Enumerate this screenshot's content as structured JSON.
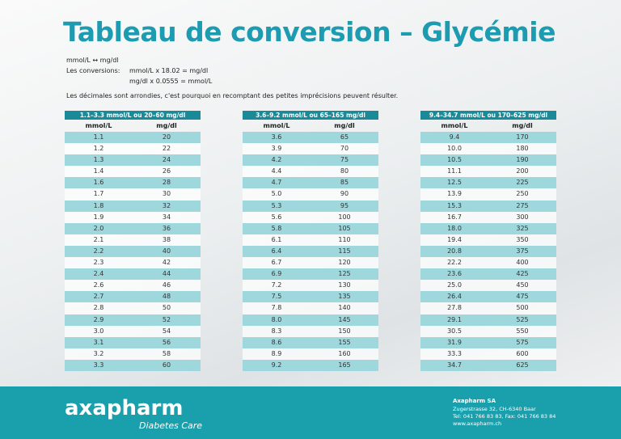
{
  "header": {
    "title": "Tableau de conversion – Glycémie",
    "units": "mmol/L ↔ mg/dl",
    "conversions_label": "Les conversions:",
    "conversion_1": "mmol/L x 18.02 = mg/dl",
    "conversion_2": "mg/dl x 0.0555 = mmol/L",
    "note": "Les décimales sont arrondies, c'est pourquoi en recomptant des petites imprécisions peuvent résulter."
  },
  "tables": [
    {
      "title": "1.1–3.3 mmol/L ou 20–60 mg/dl",
      "columns": [
        "mmol/L",
        "mg/dl"
      ],
      "rows": [
        [
          "1.1",
          "20"
        ],
        [
          "1.2",
          "22"
        ],
        [
          "1.3",
          "24"
        ],
        [
          "1.4",
          "26"
        ],
        [
          "1.6",
          "28"
        ],
        [
          "1.7",
          "30"
        ],
        [
          "1.8",
          "32"
        ],
        [
          "1.9",
          "34"
        ],
        [
          "2.0",
          "36"
        ],
        [
          "2.1",
          "38"
        ],
        [
          "2.2",
          "40"
        ],
        [
          "2.3",
          "42"
        ],
        [
          "2.4",
          "44"
        ],
        [
          "2.6",
          "46"
        ],
        [
          "2.7",
          "48"
        ],
        [
          "2.8",
          "50"
        ],
        [
          "2.9",
          "52"
        ],
        [
          "3.0",
          "54"
        ],
        [
          "3.1",
          "56"
        ],
        [
          "3.2",
          "58"
        ],
        [
          "3.3",
          "60"
        ]
      ]
    },
    {
      "title": "3.6–9.2 mmol/L ou 65–165 mg/dl",
      "columns": [
        "mmol/L",
        "mg/dl"
      ],
      "rows": [
        [
          "3.6",
          "65"
        ],
        [
          "3.9",
          "70"
        ],
        [
          "4.2",
          "75"
        ],
        [
          "4.4",
          "80"
        ],
        [
          "4.7",
          "85"
        ],
        [
          "5.0",
          "90"
        ],
        [
          "5.3",
          "95"
        ],
        [
          "5.6",
          "100"
        ],
        [
          "5.8",
          "105"
        ],
        [
          "6.1",
          "110"
        ],
        [
          "6.4",
          "115"
        ],
        [
          "6.7",
          "120"
        ],
        [
          "6.9",
          "125"
        ],
        [
          "7.2",
          "130"
        ],
        [
          "7.5",
          "135"
        ],
        [
          "7.8",
          "140"
        ],
        [
          "8.0",
          "145"
        ],
        [
          "8.3",
          "150"
        ],
        [
          "8.6",
          "155"
        ],
        [
          "8.9",
          "160"
        ],
        [
          "9.2",
          "165"
        ]
      ]
    },
    {
      "title": "9.4–34.7 mmol/L ou 170–625 mg/dl",
      "columns": [
        "mmol/L",
        "mg/dl"
      ],
      "rows": [
        [
          "9.4",
          "170"
        ],
        [
          "10.0",
          "180"
        ],
        [
          "10.5",
          "190"
        ],
        [
          "11.1",
          "200"
        ],
        [
          "12.5",
          "225"
        ],
        [
          "13.9",
          "250"
        ],
        [
          "15.3",
          "275"
        ],
        [
          "16.7",
          "300"
        ],
        [
          "18.0",
          "325"
        ],
        [
          "19.4",
          "350"
        ],
        [
          "20.8",
          "375"
        ],
        [
          "22.2",
          "400"
        ],
        [
          "23.6",
          "425"
        ],
        [
          "25.0",
          "450"
        ],
        [
          "26.4",
          "475"
        ],
        [
          "27.8",
          "500"
        ],
        [
          "29.1",
          "525"
        ],
        [
          "30.5",
          "550"
        ],
        [
          "31.9",
          "575"
        ],
        [
          "33.3",
          "600"
        ],
        [
          "34.7",
          "625"
        ]
      ]
    }
  ],
  "footer": {
    "logo": "axapharm",
    "tagline": "Diabetes Care",
    "company": "Axapharm SA",
    "address": "Zugerstrasse 32, CH-6340 Baar",
    "phone": "Tel: 041 766 83 83, Fax: 041 766 83 84",
    "web": "www.axapharm.ch"
  }
}
